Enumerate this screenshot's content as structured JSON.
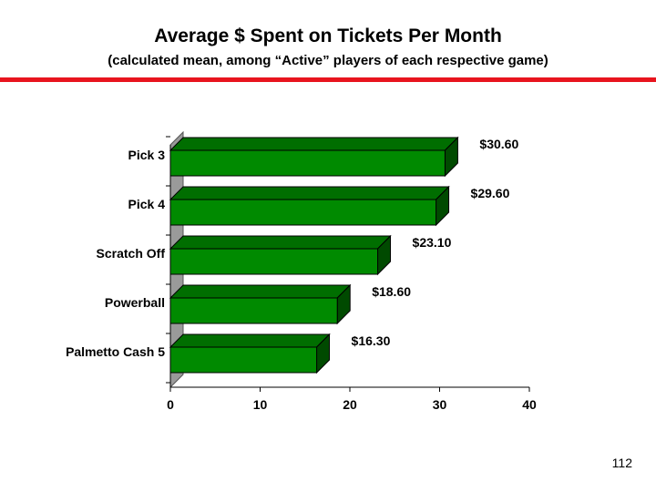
{
  "slide": {
    "title": "Average $ Spent on Tickets Per Month",
    "subtitle": "(calculated mean, among “Active” players of each respective game)",
    "page_number": "112",
    "accent_color": "#e8141e"
  },
  "chart_data": {
    "type": "bar",
    "orientation": "horizontal",
    "style": "3d",
    "title": "Average $ Spent on Tickets Per Month",
    "subtitle": "(calculated mean, among “Active” players of each respective game)",
    "categories": [
      "Pick 3",
      "Pick 4",
      "Scratch Off",
      "Powerball",
      "Palmetto Cash 5"
    ],
    "values": [
      30.6,
      29.6,
      23.1,
      18.6,
      16.3
    ],
    "data_labels": [
      "$30.60",
      "$29.60",
      "$23.10",
      "$18.60",
      "$16.30"
    ],
    "xlim": [
      0,
      40
    ],
    "xticks": [
      "0",
      "10",
      "20",
      "30",
      "40"
    ],
    "xlabel": "",
    "ylabel": "",
    "grid": false,
    "legend": "none",
    "bar_color": "#008a00",
    "bar_top_color": "#006e00",
    "bar_side_color": "#004a00",
    "wall_color": "#9a9a9a"
  }
}
